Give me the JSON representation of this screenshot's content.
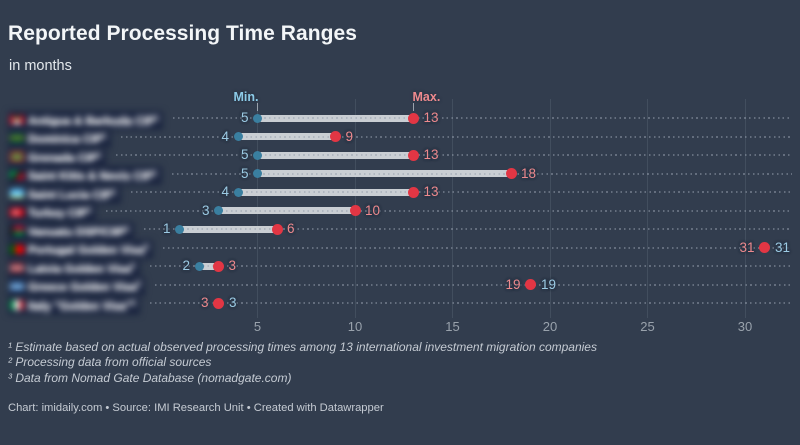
{
  "title": "Reported Processing Time Ranges",
  "subtitle": "in months",
  "annotations": {
    "min_label": "Min.",
    "max_label": "Max."
  },
  "chart_data": {
    "type": "dumbbell-range",
    "unit": "months",
    "x_ticks": [
      5,
      10,
      15,
      20,
      25,
      30
    ],
    "x_range": [
      0,
      32
    ],
    "grid": "vertical",
    "legend_position": "top-annotations",
    "rows": [
      {
        "label": "Antigua & Barbuda CIP",
        "footnote_marker": "1",
        "flag": "antigua-barbuda",
        "min": 5,
        "max": 13
      },
      {
        "label": "Dominica CIP",
        "footnote_marker": "1",
        "flag": "dominica",
        "min": 4,
        "max": 9
      },
      {
        "label": "Grenada CIP",
        "footnote_marker": "1",
        "flag": "grenada",
        "min": 5,
        "max": 13
      },
      {
        "label": "Saint Kitts & Nevis CIP",
        "footnote_marker": "1",
        "flag": "saint-kitts-nevis",
        "min": 5,
        "max": 18
      },
      {
        "label": "Saint Lucia CIP",
        "footnote_marker": "1",
        "flag": "saint-lucia",
        "min": 4,
        "max": 13
      },
      {
        "label": "Turkey CIP",
        "footnote_marker": "1",
        "flag": "turkey",
        "min": 3,
        "max": 10
      },
      {
        "label": "Vanuatu DSP/CIIP",
        "footnote_marker": "1",
        "flag": "vanuatu",
        "min": 1,
        "max": 6
      },
      {
        "label": "Portugal Golden Visa",
        "footnote_marker": "3",
        "flag": "portugal",
        "min": 31,
        "max": 31
      },
      {
        "label": "Latvia Golden Visa",
        "footnote_marker": "2",
        "flag": "latvia",
        "min": 2,
        "max": 3
      },
      {
        "label": "Greece Golden Visa",
        "footnote_marker": "2",
        "flag": "greece",
        "min": 19,
        "max": 19
      },
      {
        "label": "Italy \"Golden Visa\"",
        "footnote_marker": "2",
        "flag": "italy",
        "min": 3,
        "max": 3
      }
    ]
  },
  "footnotes": [
    "¹ Estimate based on actual observed processing times among 13 international investment migration companies",
    "² Processing data from official sources",
    "³ Data from Nomad Gate Database (nomadgate.com)"
  ],
  "footer": "Chart: imidaily.com • Source: IMI Research Unit • Created with Datawrapper",
  "colors": {
    "background": "#323d4e",
    "min_dot": "#3a7fa0",
    "max_dot": "#e23644",
    "min_value_label": "#9ccbe4",
    "max_value_label": "#ee8a8e",
    "range_bar": "#cdd1d6"
  }
}
